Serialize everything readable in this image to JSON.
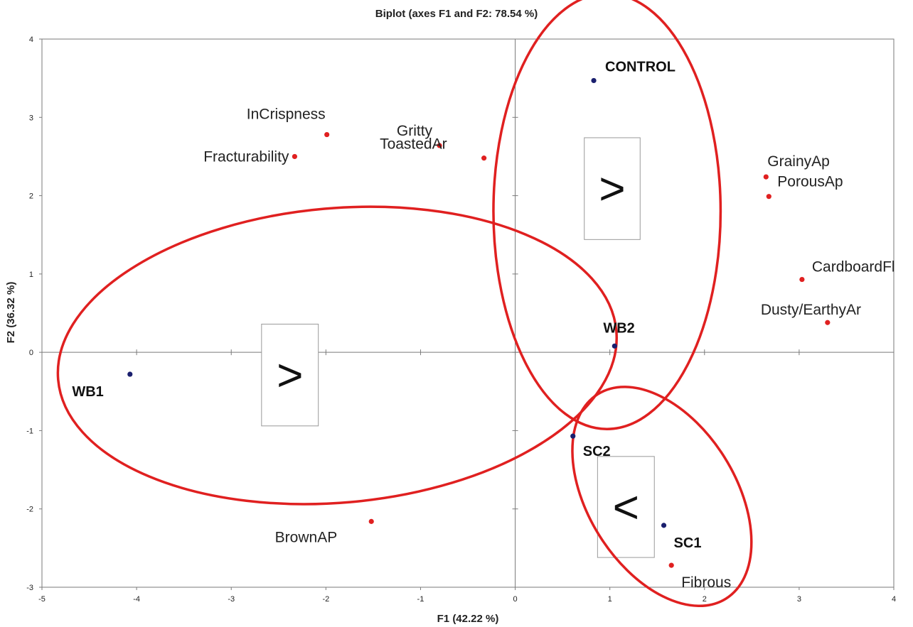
{
  "chart_data": {
    "type": "scatter",
    "title": "Biplot (axes F1 and F2: 78.54 %)",
    "xlabel": "F1 (42.22 %)",
    "ylabel": "F2 (36.32 %)",
    "xlim": [
      -5,
      4
    ],
    "ylim": [
      -3,
      4
    ],
    "xticks": [
      "-5",
      "-4",
      "-3",
      "-2",
      "-1",
      "0",
      "1",
      "2",
      "3",
      "4"
    ],
    "yticks": [
      "-3",
      "-2",
      "-1",
      "0",
      "1",
      "2",
      "3",
      "4"
    ],
    "grid": false,
    "series": [
      {
        "kind": "variables",
        "color": "#e02020",
        "points": [
          {
            "label": "InCrispness",
            "x": -1.99,
            "y": 2.78
          },
          {
            "label": "Fracturability",
            "x": -2.33,
            "y": 2.5
          },
          {
            "label": "Gritty",
            "x": -0.8,
            "y": 2.64
          },
          {
            "label": "ToastedAr",
            "x": -0.33,
            "y": 2.48
          },
          {
            "label": "GrainyAp",
            "x": 2.65,
            "y": 2.24
          },
          {
            "label": "PorousAp",
            "x": 2.68,
            "y": 1.99
          },
          {
            "label": "CardboardFl",
            "x": 3.03,
            "y": 0.93
          },
          {
            "label": "Dusty/EarthyAr",
            "x": 3.3,
            "y": 0.38
          },
          {
            "label": "BrownAP",
            "x": -1.52,
            "y": -2.16
          },
          {
            "label": "Fibrous",
            "x": 1.65,
            "y": -2.72
          }
        ]
      },
      {
        "kind": "observations",
        "color": "#1a1f6e",
        "points": [
          {
            "label": "CONTROL",
            "x": 0.83,
            "y": 3.47
          },
          {
            "label": "WB2",
            "x": 1.05,
            "y": 0.08
          },
          {
            "label": "WB1",
            "x": -4.07,
            "y": -0.28
          },
          {
            "label": "SC2",
            "x": 0.61,
            "y": -1.07
          },
          {
            "label": "SC1",
            "x": 1.57,
            "y": -2.21
          }
        ]
      }
    ],
    "annotations": [
      {
        "type": "ellipse",
        "cx": 0.97,
        "cy": 1.8,
        "rx": 1.2,
        "ry": 2.78,
        "color": "#e02020"
      },
      {
        "type": "ellipse",
        "cx": -1.88,
        "cy": -0.04,
        "rx": 2.96,
        "ry": 1.88,
        "rotate": -5,
        "color": "#e02020"
      },
      {
        "type": "ellipse",
        "cx": 1.55,
        "cy": -1.84,
        "rx": 0.78,
        "ry": 1.54,
        "rotate": -32,
        "color": "#e02020"
      },
      {
        "type": "comparison-box",
        "glyph": ">",
        "x0": 0.73,
        "x1": 1.32,
        "y0": 1.44,
        "y1": 2.74
      },
      {
        "type": "comparison-box",
        "glyph": ">",
        "x0": -2.68,
        "x1": -2.08,
        "y0": -0.94,
        "y1": 0.36
      },
      {
        "type": "comparison-box",
        "glyph": "<",
        "x0": 0.87,
        "x1": 1.47,
        "y0": -2.62,
        "y1": -1.33
      }
    ]
  }
}
